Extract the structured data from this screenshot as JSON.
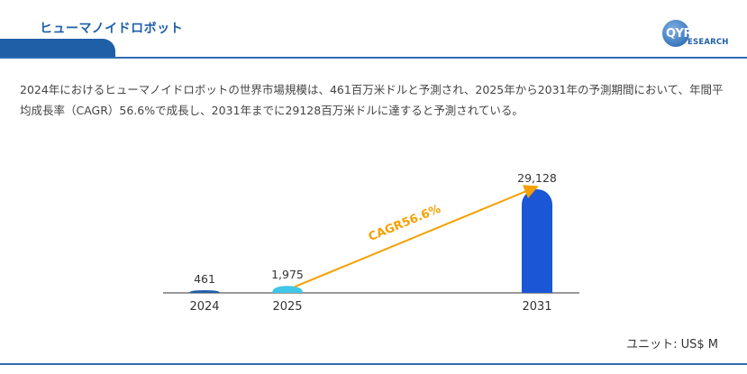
{
  "header": {
    "title": "ヒューマノイドロボット",
    "logo_text": "QYR",
    "logo_subtext": "ESEARCH"
  },
  "description": "2024年におけるヒューマノイドロボットの世界市場規模は、461百万米ドルと予測され、2025年から2031年の予測期間において、年間平均成長率（CAGR）56.6%で成長し、2031年までに29128百万米ドルに達すると予測されている。",
  "unit_label": "ユニット: US$ M",
  "colors": {
    "brand": "#1f5fa8",
    "bar_2024": "#1f5fa8",
    "bar_2025": "#3fc6e8",
    "bar_2031": "#1a56d6",
    "cagr_arrow": "#f5a000"
  },
  "chart_data": {
    "type": "bar",
    "categories": [
      "2024",
      "2025",
      "2031"
    ],
    "values": [
      461,
      1975,
      29128
    ],
    "value_labels": [
      "461",
      "1,975",
      "29,128"
    ],
    "annotation": "CAGR56.6%",
    "ylim": [
      0,
      29128
    ],
    "grid": false,
    "legend": "none"
  }
}
